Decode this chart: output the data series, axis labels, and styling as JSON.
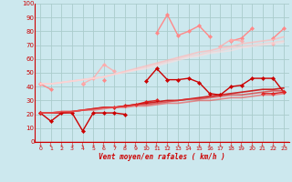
{
  "xlabel": "Vent moyen/en rafales ( km/h )",
  "bg_color": "#cce8ee",
  "grid_color": "#aacccc",
  "x": [
    0,
    1,
    2,
    3,
    4,
    5,
    6,
    7,
    8,
    9,
    10,
    11,
    12,
    13,
    14,
    15,
    16,
    17,
    18,
    19,
    20,
    21,
    22,
    23
  ],
  "lines": [
    {
      "color": "#ff8888",
      "alpha": 1.0,
      "lw": 1.0,
      "marker": "D",
      "ms": 2.2,
      "y": [
        42,
        38,
        null,
        null,
        42,
        null,
        45,
        null,
        null,
        null,
        null,
        79,
        92,
        77,
        80,
        84,
        76,
        null,
        73,
        75,
        82,
        null,
        75,
        82
      ]
    },
    {
      "color": "#ffaaaa",
      "alpha": 0.85,
      "lw": 1.0,
      "marker": "D",
      "ms": 2.2,
      "y": [
        42,
        null,
        null,
        null,
        42,
        46,
        56,
        51,
        null,
        null,
        null,
        null,
        null,
        null,
        null,
        null,
        null,
        69,
        74,
        73,
        null,
        null,
        71,
        null
      ]
    },
    {
      "color": "#ffbbbb",
      "alpha": 0.75,
      "lw": 1.2,
      "marker": null,
      "ms": 0,
      "y": [
        42,
        42,
        43,
        44,
        45,
        46,
        47,
        49,
        51,
        53,
        55,
        57,
        59,
        61,
        63,
        65,
        66,
        68,
        69,
        71,
        72,
        73,
        74,
        76
      ]
    },
    {
      "color": "#ffcccc",
      "alpha": 0.65,
      "lw": 1.2,
      "marker": null,
      "ms": 0,
      "y": [
        42,
        42,
        43,
        44,
        45,
        46,
        47,
        49,
        51,
        52,
        54,
        56,
        58,
        60,
        62,
        63,
        65,
        66,
        68,
        69,
        70,
        71,
        72,
        73
      ]
    },
    {
      "color": "#ffdddd",
      "alpha": 0.55,
      "lw": 1.2,
      "marker": null,
      "ms": 0,
      "y": [
        42,
        42,
        43,
        44,
        45,
        46,
        47,
        49,
        50,
        52,
        53,
        55,
        57,
        59,
        61,
        62,
        64,
        65,
        66,
        68,
        69,
        70,
        71,
        72
      ]
    },
    {
      "color": "#cc0000",
      "alpha": 1.0,
      "lw": 1.0,
      "marker": "D",
      "ms": 2.2,
      "y": [
        21,
        15,
        21,
        21,
        8,
        21,
        21,
        21,
        20,
        null,
        44,
        53,
        45,
        45,
        46,
        43,
        35,
        34,
        40,
        41,
        46,
        46,
        46,
        36
      ]
    },
    {
      "color": "#dd2222",
      "alpha": 1.0,
      "lw": 1.0,
      "marker": "D",
      "ms": 2.2,
      "y": [
        21,
        null,
        null,
        null,
        null,
        null,
        null,
        25,
        26,
        27,
        29,
        30,
        null,
        null,
        null,
        null,
        null,
        null,
        null,
        null,
        null,
        35,
        35,
        36
      ]
    },
    {
      "color": "#cc0000",
      "alpha": 0.85,
      "lw": 1.2,
      "marker": null,
      "ms": 0,
      "y": [
        21,
        21,
        21,
        22,
        23,
        24,
        25,
        25,
        26,
        27,
        28,
        29,
        30,
        30,
        31,
        32,
        33,
        34,
        35,
        36,
        37,
        38,
        38,
        39
      ]
    },
    {
      "color": "#dd3333",
      "alpha": 0.75,
      "lw": 1.2,
      "marker": null,
      "ms": 0,
      "y": [
        21,
        21,
        22,
        22,
        23,
        24,
        25,
        25,
        26,
        27,
        27,
        28,
        29,
        30,
        31,
        31,
        32,
        33,
        34,
        34,
        35,
        36,
        37,
        37
      ]
    },
    {
      "color": "#ee5555",
      "alpha": 0.65,
      "lw": 1.2,
      "marker": null,
      "ms": 0,
      "y": [
        21,
        21,
        22,
        22,
        23,
        23,
        24,
        25,
        25,
        26,
        26,
        27,
        28,
        28,
        29,
        30,
        30,
        31,
        32,
        32,
        33,
        34,
        34,
        35
      ]
    }
  ],
  "xlim": [
    -0.5,
    23.5
  ],
  "ylim": [
    0,
    100
  ],
  "yticks": [
    0,
    10,
    20,
    30,
    40,
    50,
    60,
    70,
    80,
    90,
    100
  ],
  "xticks": [
    0,
    1,
    2,
    3,
    4,
    5,
    6,
    7,
    8,
    9,
    10,
    11,
    12,
    13,
    14,
    15,
    16,
    17,
    18,
    19,
    20,
    21,
    22,
    23
  ],
  "xtick_labels": [
    "0",
    "1",
    "2",
    "3",
    "4",
    "5",
    "6",
    "7",
    "8",
    "9",
    "10",
    "11",
    "12",
    "13",
    "14",
    "15",
    "16",
    "17",
    "18",
    "19",
    "20",
    "21",
    "22",
    "23"
  ]
}
